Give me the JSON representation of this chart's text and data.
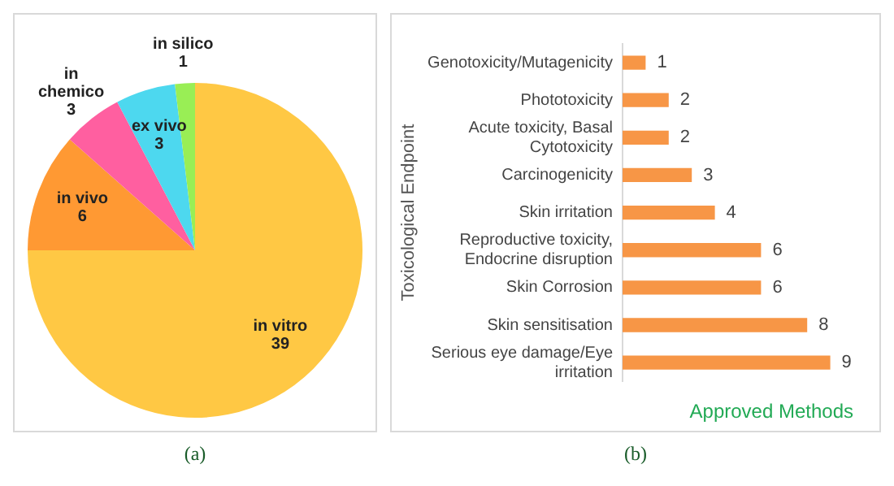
{
  "chart_data": [
    {
      "type": "pie",
      "categories": [
        "in vitro",
        "in vivo",
        "in chemico",
        "ex vivo",
        "in silico"
      ],
      "values": [
        39,
        6,
        3,
        3,
        1
      ],
      "colors": [
        "#ffc844",
        "#ff9933",
        "#ff5fa0",
        "#4dd8ef",
        "#99ee55"
      ],
      "data_labels": true,
      "legend": false,
      "annotations": [
        "(a)"
      ]
    },
    {
      "type": "bar",
      "orientation": "horizontal",
      "categories": [
        "Genotoxicity/Mutagenicity",
        "Phototoxicity",
        "Acute toxicity, Basal Cytotoxicity",
        "Carcinogenicity",
        "Skin irritation",
        "Reproductive toxicity, Endocrine disruption",
        "Skin Corrosion",
        "Skin sensitisation",
        "Serious eye damage/Eye irritation"
      ],
      "values": [
        1,
        2,
        2,
        3,
        4,
        6,
        6,
        8,
        9
      ],
      "color": "#f79646",
      "data_labels": true,
      "legend": false,
      "grid": false,
      "tick_labels": "y",
      "ylabel": "Toxicological Endpoint",
      "xlabel": "Approved Methods",
      "annotations": [
        "(b)"
      ]
    }
  ]
}
